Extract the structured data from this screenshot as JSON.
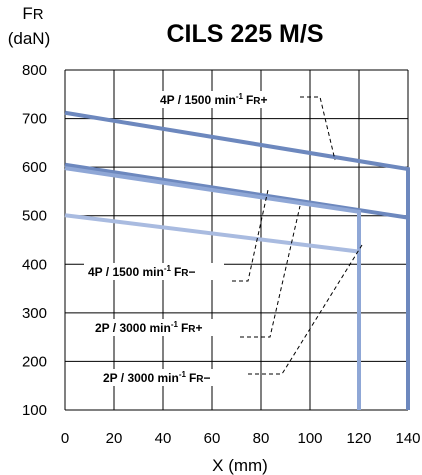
{
  "chart_data": {
    "type": "line",
    "title": "CILS 225 M/S",
    "ylabel_main": "F",
    "ylabel_sub": "R",
    "ylabel_unit": "(daN)",
    "xlabel": "X (mm)",
    "xlim": [
      0,
      140
    ],
    "ylim": [
      100,
      800
    ],
    "x_ticks": [
      "0",
      "20",
      "40",
      "60",
      "80",
      "100",
      "120",
      "140"
    ],
    "y_ticks": [
      "100",
      "200",
      "300",
      "400",
      "500",
      "600",
      "700",
      "800"
    ],
    "grid": true,
    "series": [
      {
        "name": "4P / 1500 min-1 FR+",
        "color": "#6d88be",
        "x": [
          0,
          140,
          140
        ],
        "y": [
          712,
          596,
          100
        ],
        "label": {
          "main": "4P / 1500 min",
          "sup": "-1",
          "f": "F",
          "r": "R",
          "sign": "+"
        }
      },
      {
        "name": "4P / 1500 min-1 FR-",
        "color": "#6d88be",
        "x": [
          0,
          140
        ],
        "y": [
          605,
          496
        ],
        "label": {
          "main": "4P / 1500 min",
          "sup": "-1",
          "f": "F",
          "r": "R",
          "sign": "−"
        }
      },
      {
        "name": "2P / 3000 min-1 FR+",
        "color": "#8fa7d6",
        "x": [
          0,
          120,
          120
        ],
        "y": [
          598,
          508,
          100
        ],
        "label": {
          "main": "2P / 3000 min",
          "sup": "-1",
          "f": "F",
          "r": "R",
          "sign": "+"
        }
      },
      {
        "name": "2P / 3000 min-1 FR-",
        "color": "#a9bbe0",
        "x": [
          0,
          120
        ],
        "y": [
          501,
          426
        ],
        "label": {
          "main": "2P / 3000 min",
          "sup": "-1",
          "f": "F",
          "r": "R",
          "sign": "−"
        }
      }
    ]
  }
}
